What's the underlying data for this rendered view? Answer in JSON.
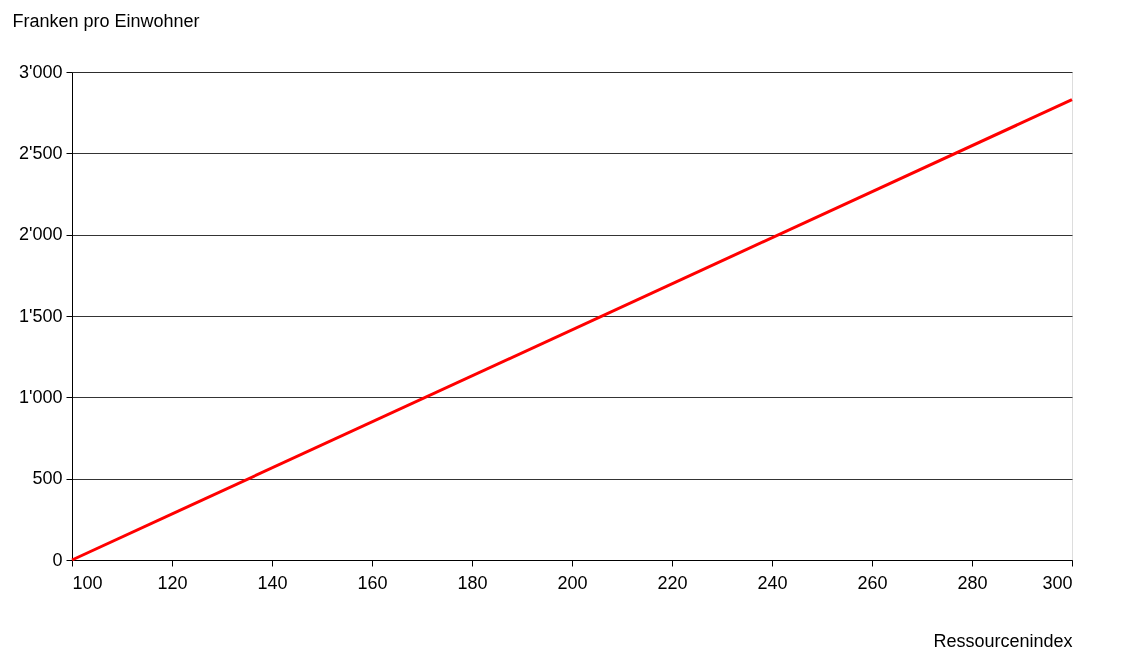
{
  "chart_data": {
    "type": "line",
    "xlabel": "Ressourcenindex",
    "ylabel": "Franken pro Einwohner",
    "x": [
      100,
      300
    ],
    "series": [
      {
        "color": "#ff0000",
        "values": [
          0,
          2830
        ]
      }
    ],
    "xlim": [
      100,
      300
    ],
    "xticks": [
      100,
      120,
      140,
      160,
      180,
      200,
      220,
      240,
      260,
      280,
      300
    ],
    "ylim": [
      0,
      3000
    ],
    "yticks": [
      0,
      500,
      {
        "value": 1000,
        "label": "1'000"
      },
      {
        "value": 1500,
        "label": "1'500"
      },
      {
        "value": 2000,
        "label": "2'000"
      },
      {
        "value": 2500,
        "label": "2'500"
      },
      {
        "value": 3000,
        "label": "3'000"
      }
    ],
    "grid": "y",
    "legend": false,
    "marker": "none",
    "line_style": "solid"
  }
}
